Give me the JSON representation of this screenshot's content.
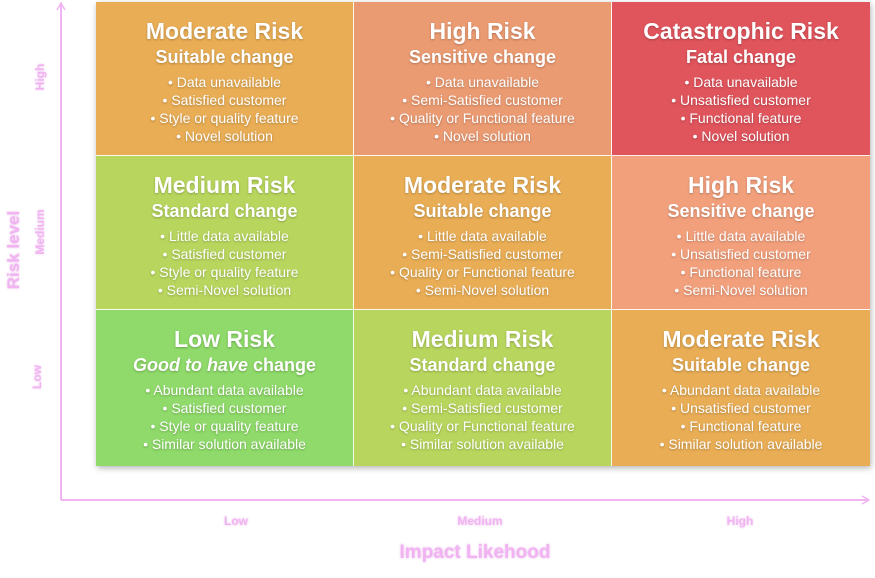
{
  "axes": {
    "x_title": "Impact Likehood",
    "y_title": "Risk level",
    "x_ticks": [
      "Low",
      "Medium",
      "High"
    ],
    "y_ticks": [
      "High",
      "Medium",
      "Low"
    ],
    "color": "#f2b3f2"
  },
  "cells": [
    {
      "title": "Moderate Risk",
      "subtitle": "Suitable change",
      "color": "#e8ad55",
      "bullets": [
        "Data unavailable",
        "Satisfied customer",
        "Style or quality feature",
        "Novel solution"
      ]
    },
    {
      "title": "High Risk",
      "subtitle": "Sensitive change",
      "color": "#eb9b72",
      "bullets": [
        "Data unavailable",
        "Semi-Satisfied customer",
        "Quality or Functional feature",
        "Novel solution"
      ]
    },
    {
      "title": "Catastrophic Risk",
      "subtitle": "Fatal change",
      "color": "#e0545c",
      "bullets": [
        "Data unavailable",
        "Unsatisfied customer",
        "Functional feature",
        "Novel solution"
      ]
    },
    {
      "title": "Medium Risk",
      "subtitle": "Standard change",
      "color": "#b8d65e",
      "bullets": [
        "Little data available",
        "Satisfied customer",
        "Style or quality feature",
        "Semi-Novel solution"
      ]
    },
    {
      "title": "Moderate Risk",
      "subtitle": "Suitable change",
      "color": "#e8ad55",
      "bullets": [
        "Little data available",
        "Semi-Satisfied customer",
        "Quality or Functional feature",
        "Semi-Novel solution"
      ]
    },
    {
      "title": "High Risk",
      "subtitle": "Sensitive change",
      "color": "#f2a07c",
      "bullets": [
        "Little data available",
        "Unsatisfied customer",
        "Functional feature",
        "Semi-Novel solution"
      ]
    },
    {
      "title": "Low Risk",
      "subtitle_emph": "Good to have",
      "subtitle_rest": " change",
      "color": "#8fda6a",
      "bullets": [
        "Abundant data available",
        "Satisfied customer",
        "Style or quality feature",
        "Similar solution available"
      ]
    },
    {
      "title": "Medium Risk",
      "subtitle": "Standard change",
      "color": "#b8d65e",
      "bullets": [
        "Abundant data available",
        "Semi-Satisfied customer",
        "Quality or Functional feature",
        "Similar solution available"
      ]
    },
    {
      "title": "Moderate Risk",
      "subtitle": "Suitable change",
      "color": "#e8ad55",
      "bullets": [
        "Abundant data available",
        "Unsatisfied customer",
        "Functional feature",
        "Similar solution available"
      ]
    }
  ]
}
